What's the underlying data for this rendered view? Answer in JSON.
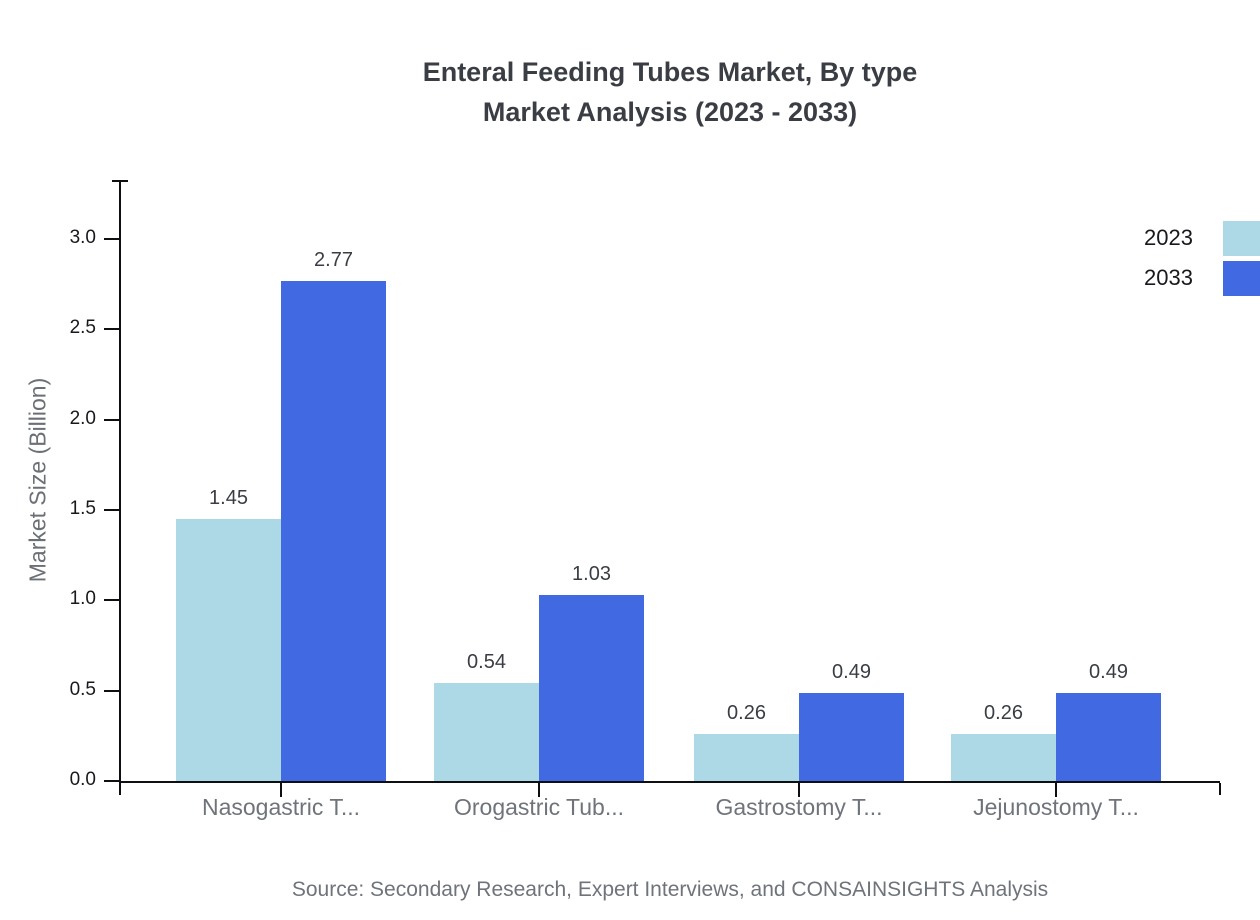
{
  "title": {
    "line1": "Enteral Feeding Tubes Market, By type",
    "line2": "Market Analysis (2023 - 2033)"
  },
  "chart_data": {
    "type": "bar",
    "categories": [
      "Nasogastric T...",
      "Orogastric Tub...",
      "Gastrostomy T...",
      "Jejunostomy T..."
    ],
    "series": [
      {
        "name": "2023",
        "color": "#ADD8E6",
        "values": [
          1.45,
          0.54,
          0.26,
          0.26
        ]
      },
      {
        "name": "2033",
        "color": "#4169E1",
        "values": [
          2.77,
          1.03,
          0.49,
          0.49
        ]
      }
    ],
    "ylabel": "Market Size (Billion)",
    "xlabel": "",
    "yticks": [
      0.0,
      0.5,
      1.0,
      1.5,
      2.0,
      2.5,
      3.0
    ],
    "ylim": [
      0,
      3.33
    ],
    "grid": false,
    "legend_position": "top-right",
    "bar_value_labels": [
      "1.45",
      "2.77",
      "0.54",
      "1.03",
      "0.26",
      "0.49",
      "0.26",
      "0.49"
    ]
  },
  "colors": {
    "axis": "#0e0f12",
    "tick_label_text": "#17191d",
    "title_text": "#3a3e44",
    "muted_text": "#6f747b"
  },
  "source": {
    "text": "Source: Secondary Research, Expert Interviews, and CONSAINSIGHTS Analysis"
  }
}
